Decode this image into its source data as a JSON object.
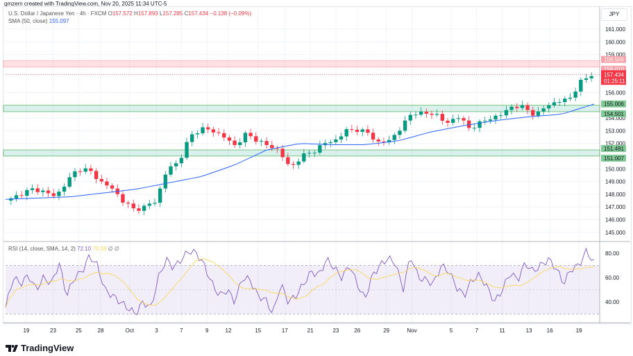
{
  "credit": "gmzern created with TradingView.com, Nov 20, 2025 11:34 UTC-5",
  "legend": {
    "symbol": "U.S. Dollar / Japanese Yen · 4h · FXCM",
    "open_label": "O",
    "open": "157.572",
    "high_label": "H",
    "high": "157.893",
    "low_label": "L",
    "low": "157.285",
    "close_label": "C",
    "close": "157.434",
    "change": "−0.138 (−0.09%)"
  },
  "sma_legend": {
    "label": "SMA (50, close)",
    "value": "155.097"
  },
  "rsi_legend": {
    "label": "RSI (14, close, SMA, 14, 2)",
    "rsi": "72.10",
    "sma": "70.38",
    "extra1": "∅",
    "extra2": "∅"
  },
  "currency": "JPY",
  "logo": "TradingView",
  "colors": {
    "up": "#089981",
    "down": "#f23645",
    "sma": "#2962ff",
    "rsi": "#7e57c2",
    "rsi_sma": "#f7d75a"
  },
  "chart_data": {
    "type": "candlestick",
    "price_ticks": [
      "161.000",
      "160.000",
      "159.000",
      "156.000",
      "154.000",
      "153.000",
      "152.000",
      "150.000",
      "149.000",
      "148.000",
      "147.000",
      "146.000",
      "145.000"
    ],
    "price_tick_values": [
      161,
      160,
      159,
      156,
      154,
      153,
      152,
      150,
      149,
      148,
      147,
      146,
      145
    ],
    "price_range": [
      144.5,
      161.8
    ],
    "x_labels": [
      "19",
      "23",
      "25",
      "28",
      "Oct",
      "3",
      "7",
      "9",
      "12",
      "15",
      "17",
      "21",
      "23",
      "26",
      "29",
      "Nov",
      "5",
      "7",
      "11",
      "13",
      "16",
      "19"
    ],
    "x_label_pos": [
      0.035,
      0.08,
      0.123,
      0.16,
      0.209,
      0.254,
      0.296,
      0.339,
      0.375,
      0.425,
      0.47,
      0.513,
      0.556,
      0.592,
      0.641,
      0.684,
      0.75,
      0.793,
      0.836,
      0.881,
      0.916,
      0.965
    ],
    "close_anchors": [
      147.6,
      148.1,
      148.4,
      148.2,
      147.8,
      149.0,
      150.0,
      149.9,
      149.0,
      148.5,
      147.5,
      146.8,
      147.0,
      147.5,
      150.0,
      150.5,
      152.5,
      153.2,
      153.0,
      152.6,
      151.8,
      152.7,
      152.3,
      151.8,
      151.5,
      150.0,
      151.0,
      151.3,
      152.0,
      152.2,
      153.0,
      153.1,
      152.8,
      152.0,
      152.3,
      153.3,
      154.5,
      154.3,
      154.4,
      153.5,
      154.2,
      153.2,
      153.6,
      154.0,
      154.3,
      155.0,
      154.8,
      154.2,
      155.0,
      155.3,
      155.5,
      156.8,
      157.45
    ],
    "sma_anchors": [
      147.6,
      147.7,
      147.8,
      148.1,
      148.4,
      148.9,
      149.4,
      150.3,
      151.5,
      152.0,
      151.9,
      151.9,
      152.2,
      152.9,
      153.4,
      153.8,
      154.1,
      154.3,
      155.1
    ],
    "zones": [
      {
        "type": "resistance",
        "low": 158.01,
        "high": 158.506,
        "low_label": "158.010",
        "high_label": "158.506"
      },
      {
        "type": "support",
        "low": 154.501,
        "high": 155.006,
        "low_label": "154.501",
        "high_label": "155.006"
      },
      {
        "type": "support",
        "low": 151.007,
        "high": 151.491,
        "low_label": "151.007",
        "high_label": "151.491"
      }
    ],
    "last_price": {
      "value": 157.434,
      "label": "157.434",
      "countdown": "01:25:11"
    },
    "rsi_ticks": [
      "80.00",
      "60.00",
      "40.00"
    ],
    "rsi_tick_values": [
      80,
      60,
      40
    ],
    "rsi_bands": [
      30,
      70
    ],
    "rsi_anchors": [
      35,
      60,
      55,
      62,
      50,
      60,
      55,
      72,
      45,
      60,
      65,
      78,
      70,
      50,
      45,
      40,
      35,
      30,
      40,
      35,
      60,
      75,
      68,
      75,
      82,
      80,
      70,
      55,
      45,
      50,
      40,
      60,
      58,
      45,
      42,
      30,
      55,
      40,
      45,
      55,
      65,
      62,
      75,
      68,
      60,
      70,
      55,
      42,
      62,
      70,
      76,
      72,
      50,
      78,
      60,
      58,
      55,
      70,
      65,
      52,
      45,
      58,
      62,
      52,
      40,
      50,
      64,
      58,
      72,
      65,
      70,
      75,
      68,
      55,
      67,
      70,
      82,
      72
    ]
  }
}
